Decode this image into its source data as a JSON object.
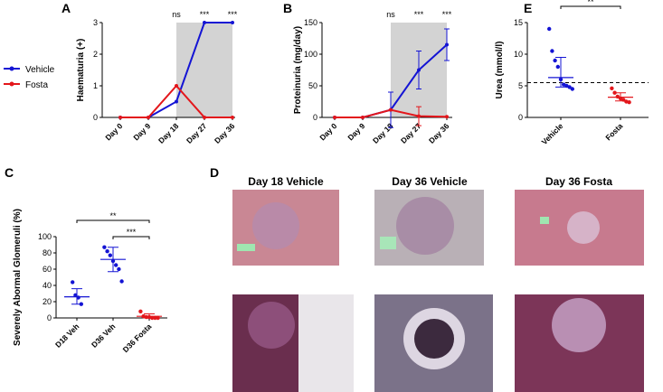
{
  "chart_data": [
    {
      "panel": "A",
      "type": "line",
      "y_label": "Haematuria (+)",
      "categories": [
        "Day 0",
        "Day 9",
        "Day 18",
        "Day 27",
        "Day 36"
      ],
      "series": [
        {
          "name": "Vehicle",
          "color": "#1414d4",
          "values": [
            0,
            0,
            0.5,
            3,
            3
          ]
        },
        {
          "name": "Fosta",
          "color": "#e3161b",
          "values": [
            0,
            0,
            1,
            0,
            0
          ]
        }
      ],
      "ylim": [
        0,
        3
      ],
      "yticks": [
        0,
        1,
        2,
        3
      ],
      "shaded": [
        2,
        4
      ],
      "annotations": [
        {
          "text": "ns",
          "category": 2
        },
        {
          "text": "***",
          "category": 3
        },
        {
          "text": "***",
          "category": 4
        }
      ],
      "legend": "outside-left"
    },
    {
      "panel": "B",
      "type": "line",
      "y_label": "Proteinuria (mg/day)",
      "categories": [
        "Day 0",
        "Day 9",
        "Day 18",
        "Day 27",
        "Day 36"
      ],
      "series": [
        {
          "name": "Vehicle",
          "color": "#1414d4",
          "values": [
            0,
            0,
            12,
            75,
            115
          ],
          "errors": [
            0,
            0,
            28,
            30,
            25
          ]
        },
        {
          "name": "Fosta",
          "color": "#e3161b",
          "values": [
            0,
            0,
            12,
            2,
            1
          ],
          "errors": [
            0,
            0,
            0,
            15,
            0
          ]
        }
      ],
      "ylim": [
        0,
        150
      ],
      "yticks": [
        0,
        50,
        100,
        150
      ],
      "shaded": [
        2,
        4
      ],
      "annotations": [
        {
          "text": "ns",
          "category": 2
        },
        {
          "text": "***",
          "category": 3
        },
        {
          "text": "***",
          "category": 4
        }
      ]
    },
    {
      "panel": "E",
      "type": "dot",
      "y_label": "Urea (mmol/l)",
      "categories": [
        "Vehicle",
        "Fosta"
      ],
      "colors": [
        "#1414d4",
        "#e3161b"
      ],
      "points": [
        [
          14,
          10.5,
          9,
          8,
          6,
          5.2,
          5,
          4.8,
          4.5
        ],
        [
          4.6,
          3.9,
          3.3,
          3,
          2.8,
          2.5,
          2.4
        ]
      ],
      "means": [
        6.3,
        3.2
      ],
      "err_low": [
        4.8,
        2.6
      ],
      "err_high": [
        9.5,
        3.9
      ],
      "reference_line": 5.5,
      "ylim": [
        0,
        15
      ],
      "yticks": [
        0,
        5,
        10,
        15
      ],
      "brackets": [
        {
          "text": "**",
          "from": 0,
          "to": 1
        }
      ]
    },
    {
      "panel": "C",
      "type": "dot",
      "y_label": "Severely Abormal Glomeruli (%)",
      "categories": [
        "D18 Veh",
        "D36 Veh",
        "D36 Fosta"
      ],
      "colors": [
        "#1414d4",
        "#1414d4",
        "#e3161b"
      ],
      "points": [
        [
          44,
          28,
          25,
          17
        ],
        [
          87,
          82,
          77,
          70,
          65,
          60,
          45
        ],
        [
          8,
          2,
          1,
          1,
          0,
          0,
          0
        ]
      ],
      "means": [
        26,
        72,
        2
      ],
      "err_low": [
        17,
        57,
        0
      ],
      "err_high": [
        36,
        87,
        5
      ],
      "ylim": [
        0,
        100
      ],
      "yticks": [
        0,
        20,
        40,
        60,
        80,
        100
      ],
      "brackets": [
        {
          "text": "**",
          "from": 0,
          "to": 2
        },
        {
          "text": "***",
          "from": 1,
          "to": 2
        }
      ]
    }
  ],
  "micrographs": {
    "panel": "D",
    "titles": [
      "Day 18 Vehicle",
      "Day 36 Vehicle",
      "Day 36 Fosta"
    ]
  }
}
